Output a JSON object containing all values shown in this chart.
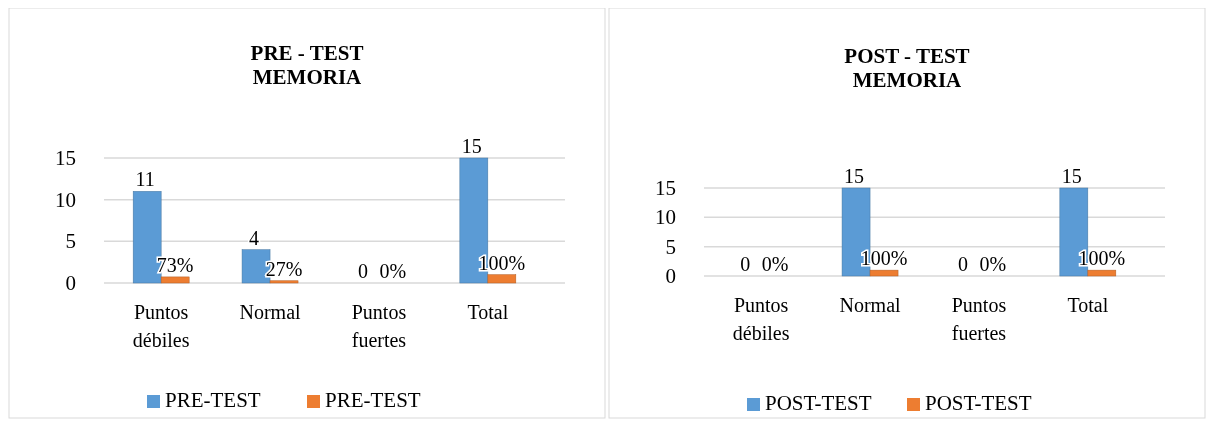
{
  "chart_data": [
    {
      "type": "bar",
      "title": "PRE - TEST\nMEMORIA",
      "categories": [
        "Puntos débiles",
        "Normal",
        "Puntos fuertes",
        "Total"
      ],
      "series": [
        {
          "name": "PRE-TEST",
          "color": "#5b9bd5",
          "values": [
            11,
            4,
            0,
            15
          ],
          "value_labels": [
            "11",
            "4",
            "0",
            "15"
          ]
        },
        {
          "name": "PRE-TEST",
          "color": "#ed7d31",
          "values": [
            0.73,
            0.27,
            0,
            1
          ],
          "value_labels": [
            "73%",
            "27%",
            "0%",
            "100%"
          ]
        }
      ],
      "ylim": [
        0,
        15
      ],
      "yticks": [
        0,
        5,
        10,
        15
      ],
      "grid": "y",
      "legend": "bottom"
    },
    {
      "type": "bar",
      "title": "POST - TEST\nMEMORIA",
      "categories": [
        "Puntos débiles",
        "Normal",
        "Puntos fuertes",
        "Total"
      ],
      "series": [
        {
          "name": "POST-TEST",
          "color": "#5b9bd5",
          "values": [
            0,
            15,
            0,
            15
          ],
          "value_labels": [
            "0",
            "15",
            "0",
            "15"
          ]
        },
        {
          "name": "POST-TEST",
          "color": "#ed7d31",
          "values": [
            0,
            1,
            0,
            1
          ],
          "value_labels": [
            "0%",
            "100%",
            "0%",
            "100%"
          ]
        }
      ],
      "ylim": [
        0,
        15
      ],
      "yticks": [
        0,
        5,
        10,
        15
      ],
      "grid": "y",
      "legend": "bottom"
    }
  ]
}
